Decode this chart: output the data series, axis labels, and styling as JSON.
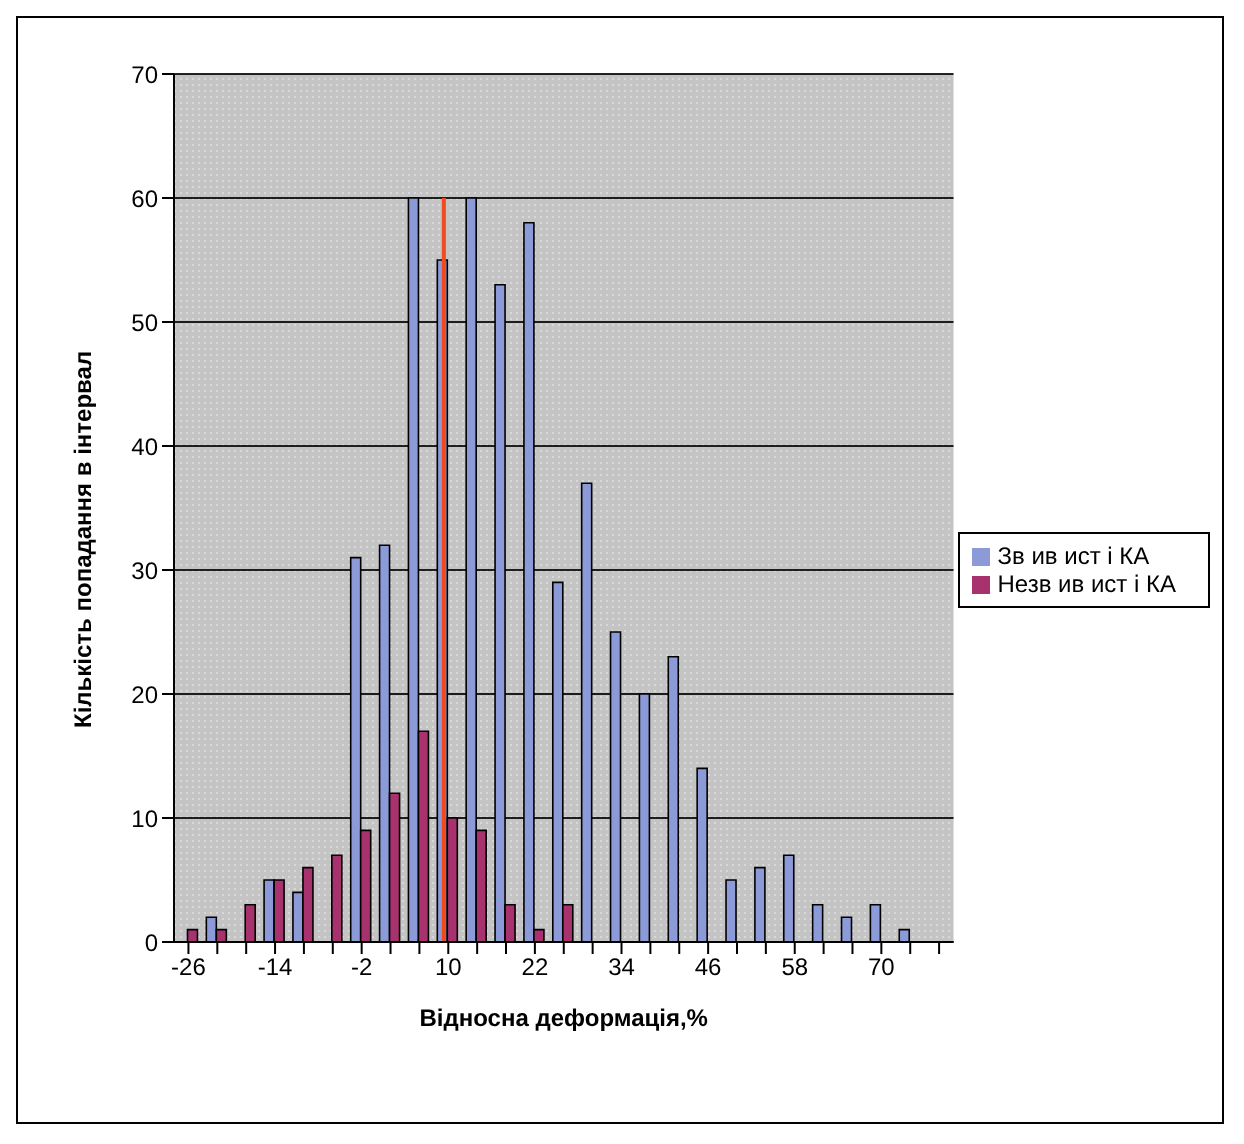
{
  "chart_data": {
    "type": "bar",
    "xlabel": "Відносна деформація,%",
    "ylabel": "Кількість попадання в інтервал",
    "categories": [
      "-26",
      null,
      null,
      "-14",
      null,
      null,
      "-2",
      null,
      null,
      "10",
      null,
      null,
      "22",
      null,
      null,
      "34",
      null,
      null,
      "46",
      null,
      null,
      "58",
      null,
      null,
      "70",
      null,
      null
    ],
    "series": [
      {
        "name": "Зв ив ист і КА",
        "color": "#8c9ad8",
        "values": [
          0,
          2,
          0,
          5,
          4,
          0,
          31,
          32,
          60,
          55,
          60,
          53,
          58,
          29,
          37,
          25,
          20,
          23,
          14,
          5,
          6,
          7,
          3,
          2,
          3,
          1,
          0
        ]
      },
      {
        "name": "Незв ив ист і КА",
        "color": "#a8326e",
        "values": [
          1,
          1,
          3,
          5,
          6,
          7,
          9,
          12,
          17,
          10,
          9,
          3,
          1,
          3,
          0,
          0,
          0,
          0,
          0,
          0,
          0,
          0,
          0,
          0,
          0,
          0,
          0
        ]
      }
    ],
    "ref_lines": [
      {
        "axis": "x",
        "value": "10",
        "color": "#f04a1e"
      }
    ],
    "ylim": [
      0,
      70
    ],
    "yticks": [
      0,
      10,
      20,
      30,
      40,
      50,
      60,
      70
    ],
    "grid": "y",
    "legend": "right"
  }
}
